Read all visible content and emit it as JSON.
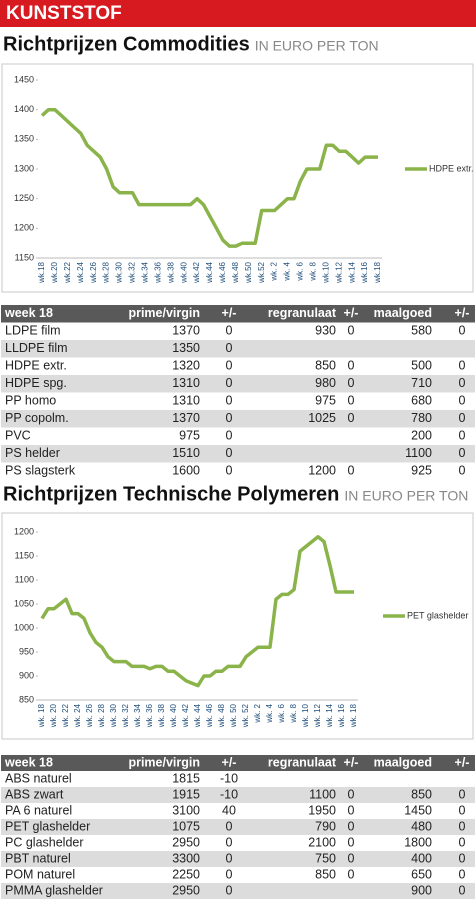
{
  "banner": "KUNSTSTOF",
  "headings": [
    {
      "title": "Richtprijzen Commodities",
      "subtitle": "IN EURO PER TON"
    },
    {
      "title": "Richtprijzen Technische Polymeren",
      "subtitle": "IN EURO PER TON"
    }
  ],
  "chart_data": [
    {
      "type": "line",
      "categories": [
        "wk.18",
        null,
        "wk.20",
        null,
        "wk.22",
        null,
        "wk.24",
        null,
        "wk.26",
        null,
        "wk.28",
        null,
        "wk.30",
        null,
        "wk.32",
        null,
        "wk.34",
        null,
        "wk.36",
        null,
        "wk.38",
        null,
        "wk.40",
        null,
        "wk.42",
        null,
        "wk.44",
        null,
        "wk.46",
        null,
        "wk.48",
        null,
        "wk.50",
        null,
        "wk.52",
        null,
        "wk. 2",
        null,
        "wk. 4",
        null,
        "wk. 6",
        null,
        "wk. 8",
        null,
        "wk.10",
        null,
        "wk.12",
        null,
        "wk.14",
        null,
        "wk.16",
        null,
        "wk.18"
      ],
      "series": [
        {
          "name": "HDPE extr.",
          "color": "#8ab34a",
          "values": [
            1390,
            1400,
            1400,
            1390,
            1380,
            1370,
            1360,
            1340,
            1330,
            1320,
            1300,
            1270,
            1260,
            1260,
            1260,
            1240,
            1240,
            1240,
            1240,
            1240,
            1240,
            1240,
            1240,
            1240,
            1250,
            1240,
            1220,
            1200,
            1180,
            1170,
            1170,
            1175,
            1175,
            1175,
            1230,
            1230,
            1230,
            1240,
            1250,
            1250,
            1280,
            1300,
            1300,
            1300,
            1340,
            1340,
            1330,
            1330,
            1320,
            1310,
            1320,
            1320,
            1320
          ]
        }
      ],
      "ylim": [
        1150,
        1450
      ],
      "yticks": [
        1150,
        1200,
        1250,
        1300,
        1350,
        1400,
        1450
      ],
      "grid": false,
      "legend": "right"
    },
    {
      "type": "line",
      "categories": [
        "wk. 18",
        null,
        "wk. 20",
        null,
        "wk. 22",
        null,
        "wk. 24",
        null,
        "wk. 26",
        null,
        "wk. 28",
        null,
        "wk. 30",
        null,
        "wk. 32",
        null,
        "wk. 34",
        null,
        "wk. 36",
        null,
        "wk. 38",
        null,
        "wk. 40",
        null,
        "wk. 42",
        null,
        "wk. 44",
        null,
        "wk. 46",
        null,
        "wk. 48",
        null,
        "wk. 50",
        null,
        "wk. 52",
        null,
        "wk. 2",
        null,
        "wk. 4",
        null,
        "wk. 6",
        null,
        "wk. 8",
        null,
        "wk. 10",
        null,
        "wk. 12",
        null,
        "wk. 14",
        null,
        "wk. 16",
        null,
        "wk. 18"
      ],
      "series": [
        {
          "name": "PET glashelder",
          "color": "#8ab34a",
          "values": [
            1020,
            1040,
            1040,
            1050,
            1060,
            1030,
            1030,
            1020,
            990,
            970,
            960,
            940,
            930,
            930,
            930,
            920,
            920,
            920,
            915,
            920,
            920,
            910,
            910,
            900,
            890,
            885,
            880,
            900,
            900,
            910,
            910,
            920,
            920,
            920,
            940,
            950,
            960,
            960,
            960,
            1060,
            1070,
            1070,
            1080,
            1160,
            1170,
            1180,
            1190,
            1180,
            1130,
            1075,
            1075,
            1075,
            1075
          ]
        }
      ],
      "ylim": [
        850,
        1200
      ],
      "yticks": [
        850,
        900,
        950,
        1000,
        1050,
        1100,
        1150,
        1200
      ],
      "grid": false,
      "legend": "right"
    }
  ],
  "tables": [
    {
      "header": [
        "week 18",
        "prime/virgin",
        "+/-",
        "regranulaat",
        "+/-",
        "maalgoed",
        "+/-"
      ],
      "rows": [
        [
          "LDPE film",
          1370,
          0,
          930,
          0,
          580,
          0
        ],
        [
          "LLDPE film",
          1350,
          0,
          null,
          null,
          null,
          null
        ],
        [
          "HDPE extr.",
          1320,
          0,
          850,
          0,
          500,
          0
        ],
        [
          "HDPE spg.",
          1310,
          0,
          980,
          0,
          710,
          0
        ],
        [
          "PP homo",
          1310,
          0,
          975,
          0,
          680,
          0
        ],
        [
          "PP copolm.",
          1370,
          0,
          1025,
          0,
          780,
          0
        ],
        [
          "PVC",
          975,
          0,
          null,
          null,
          200,
          0
        ],
        [
          "PS helder",
          1510,
          0,
          null,
          null,
          1100,
          0
        ],
        [
          "PS slagsterk",
          1600,
          0,
          1200,
          0,
          925,
          0
        ]
      ]
    },
    {
      "header": [
        "week 18",
        "prime/virgin",
        "+/-",
        "regranulaat",
        "+/-",
        "maalgoed",
        "+/-"
      ],
      "rows": [
        [
          "ABS naturel",
          1815,
          -10,
          null,
          null,
          null,
          null
        ],
        [
          "ABS zwart",
          1915,
          -10,
          1100,
          0,
          850,
          0
        ],
        [
          "PA 6 naturel",
          3100,
          40,
          1950,
          0,
          1450,
          0
        ],
        [
          "PET glashelder",
          1075,
          0,
          790,
          0,
          480,
          0
        ],
        [
          "PC glashelder",
          2950,
          0,
          2100,
          0,
          1800,
          0
        ],
        [
          "PBT naturel",
          3300,
          0,
          750,
          0,
          400,
          0
        ],
        [
          "POM naturel",
          2250,
          0,
          850,
          0,
          650,
          0
        ],
        [
          "PMMA glashelder",
          2950,
          0,
          null,
          null,
          900,
          0
        ]
      ]
    }
  ]
}
